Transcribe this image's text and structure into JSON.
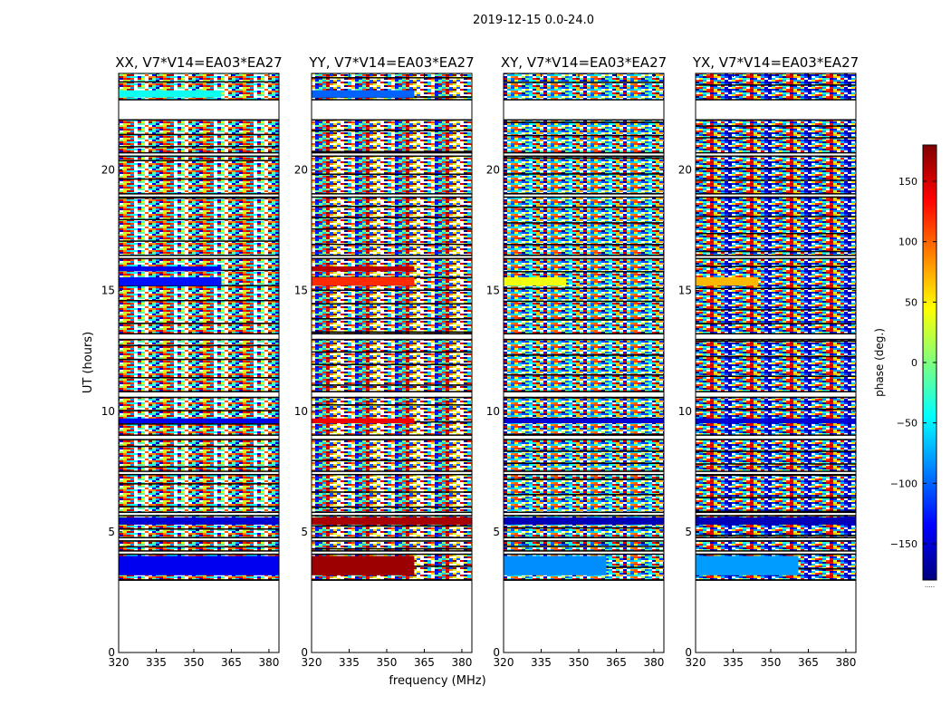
{
  "figure": {
    "suptitle": "2019-12-15 0.0-24.0",
    "xlabel": "frequency (MHz)",
    "ylabel": "UT (hours)"
  },
  "chart_data": {
    "type": "heatmap",
    "title": "2019-12-15 0.0-24.0",
    "xlabel": "frequency (MHz)",
    "ylabel": "UT (hours)",
    "xlim": [
      320,
      384
    ],
    "ylim": [
      0,
      24
    ],
    "xticks": [
      320,
      335,
      350,
      365,
      380
    ],
    "yticks": [
      0,
      5,
      10,
      15,
      20
    ],
    "colorbar": {
      "label": "phase (deg.)",
      "range": [
        -180,
        180
      ],
      "ticks": [
        150,
        100,
        50,
        0,
        -50,
        -100,
        -150
      ],
      "tick_labels": [
        "150",
        "100",
        "50",
        "0",
        "−50",
        "−100",
        "−150"
      ],
      "colormap": [
        "#00007f",
        "#0000ff",
        "#007fff",
        "#00ffff",
        "#7fff7f",
        "#ffff00",
        "#ff7f00",
        "#ff0000",
        "#7f0000"
      ],
      "footer": "....."
    },
    "data_start_ut": 3.0,
    "data_end_ut": 24.0,
    "gaps_ut": [
      [
        22.1,
        22.9
      ],
      [
        20.6,
        20.7
      ],
      [
        18.9,
        19.0
      ],
      [
        16.35,
        16.45
      ],
      [
        13.0,
        13.2
      ],
      [
        10.6,
        10.8
      ],
      [
        8.85,
        9.0
      ],
      [
        7.4,
        7.5
      ],
      [
        5.7,
        5.8
      ],
      [
        4.65,
        4.75
      ],
      [
        4.1,
        4.2
      ]
    ],
    "panels": [
      {
        "title": "XX, V7*V14=EA03*EA27",
        "pol": "XX",
        "solid_bands": [
          {
            "ut": [
              3.2,
              4.0
            ],
            "phase_deg": -140,
            "until_mhz": 384
          },
          {
            "ut": [
              15.2,
              15.55
            ],
            "phase_deg": -130,
            "until_mhz": 361
          },
          {
            "ut": [
              15.8,
              16.0
            ],
            "phase_deg": -140,
            "until_mhz": 361
          },
          {
            "ut": [
              9.5,
              9.7
            ],
            "phase_deg": -140,
            "until_mhz": 384
          },
          {
            "ut": [
              5.3,
              5.6
            ],
            "phase_deg": -150,
            "until_mhz": 384
          },
          {
            "ut": [
              23.0,
              23.3
            ],
            "phase_deg": -40,
            "until_mhz": 361
          }
        ]
      },
      {
        "title": "YY, V7*V14=EA03*EA27",
        "pol": "YY",
        "solid_bands": [
          {
            "ut": [
              3.2,
              4.0
            ],
            "phase_deg": 170,
            "until_mhz": 361
          },
          {
            "ut": [
              15.2,
              15.55
            ],
            "phase_deg": 120,
            "until_mhz": 361
          },
          {
            "ut": [
              15.8,
              16.0
            ],
            "phase_deg": 160,
            "until_mhz": 361
          },
          {
            "ut": [
              9.5,
              9.7
            ],
            "phase_deg": 140,
            "until_mhz": 361
          },
          {
            "ut": [
              5.3,
              5.6
            ],
            "phase_deg": 165,
            "until_mhz": 384
          },
          {
            "ut": [
              23.0,
              23.3
            ],
            "phase_deg": -100,
            "until_mhz": 361
          }
        ]
      },
      {
        "title": "XY, V7*V14=EA03*EA27",
        "pol": "XY",
        "solid_bands": [
          {
            "ut": [
              3.2,
              4.0
            ],
            "phase_deg": -85,
            "until_mhz": 361
          },
          {
            "ut": [
              15.2,
              15.55
            ],
            "phase_deg": 40,
            "until_mhz": 345
          },
          {
            "ut": [
              9.5,
              9.7
            ],
            "phase_deg": -150,
            "until_mhz": 384
          },
          {
            "ut": [
              5.3,
              5.6
            ],
            "phase_deg": -160,
            "until_mhz": 384
          }
        ]
      },
      {
        "title": "YX, V7*V14=EA03*EA27",
        "pol": "YX",
        "solid_bands": [
          {
            "ut": [
              3.2,
              4.0
            ],
            "phase_deg": -80,
            "until_mhz": 361
          },
          {
            "ut": [
              15.2,
              15.55
            ],
            "phase_deg": 70,
            "until_mhz": 345
          },
          {
            "ut": [
              9.5,
              9.7
            ],
            "phase_deg": -150,
            "until_mhz": 384
          },
          {
            "ut": [
              5.3,
              5.6
            ],
            "phase_deg": -160,
            "until_mhz": 384
          }
        ]
      }
    ]
  }
}
